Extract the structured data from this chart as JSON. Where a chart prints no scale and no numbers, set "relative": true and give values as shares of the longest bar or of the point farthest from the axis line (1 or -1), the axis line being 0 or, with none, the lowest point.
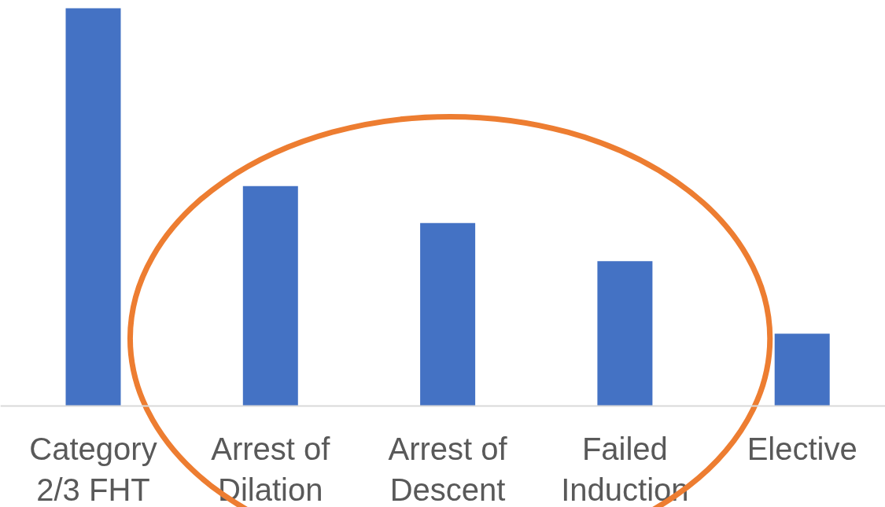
{
  "chart_data": {
    "type": "bar",
    "relative": true,
    "categories": [
      "Category 2/3 FHT",
      "Arrest of Dilation",
      "Arrest of Descent",
      "Failed Induction",
      "Elective"
    ],
    "values": [
      1,
      0.553,
      0.46,
      0.364,
      0.182
    ],
    "color": "#4472c4",
    "grid": false
  }
}
